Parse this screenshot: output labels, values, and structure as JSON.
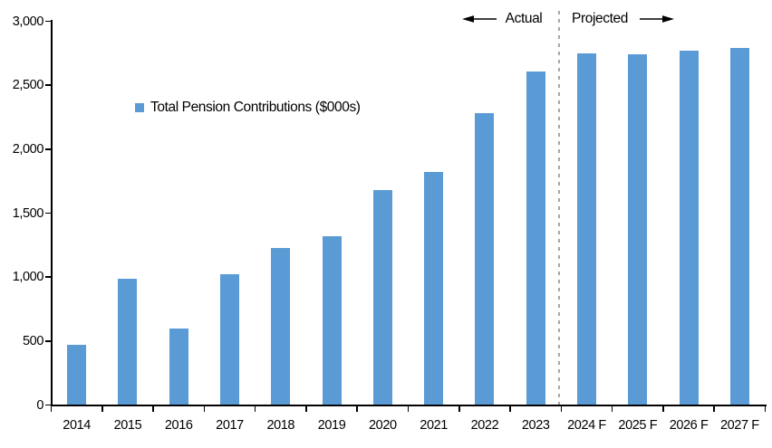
{
  "chart_data": {
    "type": "bar",
    "title": "",
    "legend": "Total Pension Contributions ($000s)",
    "categories": [
      "2014",
      "2015",
      "2016",
      "2017",
      "2018",
      "2019",
      "2020",
      "2021",
      "2022",
      "2023",
      "2024 F",
      "2025 F",
      "2026 F",
      "2027 F"
    ],
    "values": [
      470,
      990,
      600,
      1020,
      1230,
      1320,
      1680,
      1820,
      2280,
      2610,
      2750,
      2740,
      2770,
      2790
    ],
    "xlabel": "",
    "ylabel": "",
    "ylim": [
      0,
      3000
    ],
    "ytick_interval": 500,
    "ytick_labels": [
      "0",
      "500",
      "1,000",
      "1,500",
      "2,000",
      "2,500",
      "3,000"
    ],
    "grid": false,
    "legend_position": "inside-upper-left",
    "annotations": {
      "actual_label": "Actual",
      "projected_label": "Projected",
      "actual_arrow_icon": "left-arrow-icon",
      "projected_arrow_icon": "right-arrow-icon",
      "divider_between": [
        "2023",
        "2024 F"
      ]
    },
    "colors": {
      "bar": "#5B9BD5",
      "divider": "#A6A6A6",
      "axis": "#000000",
      "text": "#000000",
      "background": "#FFFFFF"
    }
  }
}
